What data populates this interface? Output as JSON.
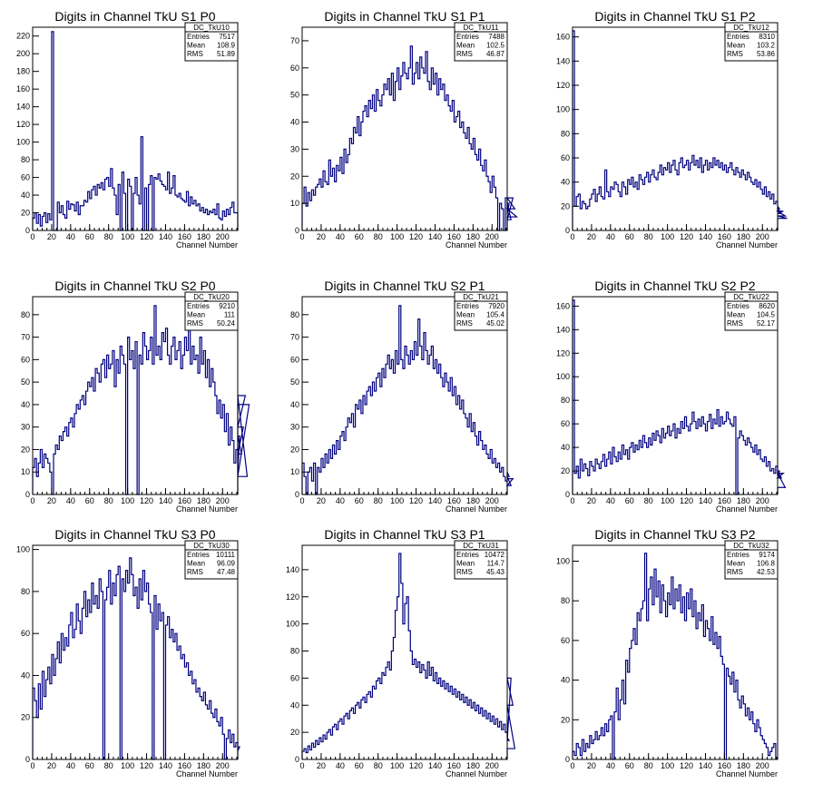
{
  "colors": {
    "histogram_line": "#000080",
    "frame": "#000000",
    "background": "#ffffff"
  },
  "chart_data": [
    {
      "type": "histogram",
      "title": "Digits in Channel TkU S1 P0",
      "xlabel": "Channel Number",
      "stats": {
        "name": "DC_TkU10",
        "entries": "7517",
        "mean": "108.9",
        "rms": "51.89"
      },
      "xlim": [
        0,
        216
      ],
      "ylim": [
        0,
        230
      ],
      "xticks": [
        "0",
        "20",
        "40",
        "60",
        "80",
        "100",
        "120",
        "140",
        "160",
        "180",
        "200"
      ],
      "yticks": [
        "0",
        "20",
        "40",
        "60",
        "80",
        "100",
        "120",
        "140",
        "160",
        "180",
        "200",
        "220"
      ],
      "bin_width": 2,
      "values": [
        14,
        20,
        8,
        18,
        5,
        16,
        20,
        9,
        19,
        12,
        225,
        0,
        0,
        32,
        20,
        28,
        18,
        14,
        33,
        24,
        30,
        29,
        22,
        32,
        18,
        28,
        28,
        34,
        32,
        44,
        36,
        46,
        50,
        40,
        52,
        48,
        54,
        46,
        58,
        60,
        50,
        70,
        48,
        40,
        18,
        52,
        0,
        66,
        42,
        0,
        58,
        50,
        0,
        42,
        60,
        40,
        30,
        106,
        0,
        48,
        0,
        52,
        62,
        0,
        60,
        58,
        64,
        56,
        52,
        50,
        46,
        66,
        42,
        48,
        62,
        40,
        38,
        42,
        36,
        34,
        32,
        44,
        28,
        38,
        30,
        34,
        28,
        30,
        22,
        26,
        20,
        24,
        18,
        22,
        20,
        24,
        18,
        30,
        14,
        12,
        22,
        16,
        24,
        18,
        26,
        32,
        20,
        20
      ]
    },
    {
      "type": "histogram",
      "title": "Digits in Channel TkU S1 P1",
      "xlabel": "Channel Number",
      "stats": {
        "name": "DC_TkU11",
        "entries": "7488",
        "mean": "102.5",
        "rms": "46.87"
      },
      "xlim": [
        0,
        216
      ],
      "ylim": [
        0,
        75
      ],
      "xticks": [
        "0",
        "20",
        "40",
        "60",
        "80",
        "100",
        "120",
        "140",
        "160",
        "180",
        "200"
      ],
      "yticks": [
        "0",
        "10",
        "20",
        "30",
        "40",
        "50",
        "60",
        "70"
      ],
      "bin_width": 2,
      "values": [
        10,
        16,
        9,
        14,
        11,
        15,
        13,
        16,
        17,
        19,
        16,
        22,
        18,
        17,
        26,
        20,
        23,
        18,
        24,
        22,
        27,
        21,
        30,
        25,
        28,
        34,
        32,
        38,
        36,
        42,
        35,
        40,
        44,
        46,
        42,
        48,
        45,
        50,
        44,
        52,
        48,
        46,
        50,
        54,
        52,
        56,
        50,
        58,
        48,
        55,
        60,
        52,
        57,
        62,
        58,
        56,
        60,
        68,
        54,
        58,
        62,
        56,
        64,
        60,
        58,
        66,
        55,
        52,
        60,
        54,
        58,
        50,
        56,
        52,
        54,
        48,
        50,
        46,
        44,
        48,
        40,
        42,
        44,
        38,
        40,
        36,
        34,
        38,
        32,
        30,
        34,
        28,
        26,
        30,
        24,
        22,
        26,
        20,
        18,
        14,
        20,
        16,
        12,
        0,
        10,
        8,
        0,
        12,
        6,
        10,
        4,
        12,
        8,
        5
      ]
    },
    {
      "type": "histogram",
      "title": "Digits in Channel TkU S1 P2",
      "xlabel": "Channel Number",
      "stats": {
        "name": "DC_TkU12",
        "entries": "8310",
        "mean": "103.2",
        "rms": "53.86"
      },
      "xlim": [
        0,
        216
      ],
      "ylim": [
        0,
        168
      ],
      "xticks": [
        "0",
        "20",
        "40",
        "60",
        "80",
        "100",
        "120",
        "140",
        "160",
        "180",
        "200"
      ],
      "yticks": [
        "0",
        "20",
        "40",
        "60",
        "80",
        "100",
        "120",
        "140",
        "160"
      ],
      "bin_width": 2,
      "values": [
        165,
        20,
        28,
        30,
        18,
        24,
        22,
        18,
        20,
        26,
        30,
        34,
        24,
        30,
        36,
        28,
        26,
        50,
        32,
        28,
        36,
        34,
        40,
        38,
        32,
        28,
        40,
        36,
        30,
        42,
        38,
        44,
        36,
        40,
        34,
        46,
        42,
        38,
        44,
        48,
        40,
        46,
        50,
        44,
        42,
        48,
        54,
        46,
        52,
        50,
        56,
        48,
        54,
        58,
        50,
        46,
        56,
        60,
        52,
        54,
        58,
        50,
        56,
        62,
        54,
        58,
        52,
        60,
        48,
        54,
        58,
        50,
        56,
        52,
        60,
        54,
        58,
        52,
        56,
        50,
        54,
        48,
        52,
        56,
        50,
        46,
        52,
        48,
        44,
        50,
        46,
        42,
        48,
        44,
        40,
        38,
        42,
        36,
        40,
        34,
        30,
        36,
        28,
        32,
        26,
        30,
        22,
        24,
        20,
        18,
        14,
        16,
        12,
        10
      ]
    },
    {
      "type": "histogram",
      "title": "Digits in Channel TkU S2 P0",
      "xlabel": "Channel Number",
      "stats": {
        "name": "DC_TkU20",
        "entries": "9210",
        "mean": "111",
        "rms": "50.24"
      },
      "xlim": [
        0,
        216
      ],
      "ylim": [
        0,
        88
      ],
      "xticks": [
        "0",
        "20",
        "40",
        "60",
        "80",
        "100",
        "120",
        "140",
        "160",
        "180",
        "200"
      ],
      "yticks": [
        "0",
        "10",
        "20",
        "30",
        "40",
        "50",
        "60",
        "70",
        "80"
      ],
      "bin_width": 2,
      "values": [
        12,
        16,
        8,
        14,
        20,
        12,
        18,
        16,
        14,
        10,
        0,
        18,
        22,
        20,
        26,
        24,
        28,
        30,
        26,
        32,
        34,
        30,
        36,
        40,
        38,
        42,
        44,
        40,
        46,
        50,
        48,
        52,
        46,
        56,
        54,
        50,
        58,
        60,
        52,
        62,
        56,
        58,
        64,
        48,
        60,
        54,
        66,
        62,
        58,
        0,
        70,
        60,
        64,
        56,
        68,
        0,
        62,
        58,
        72,
        66,
        60,
        64,
        70,
        58,
        84,
        62,
        66,
        60,
        72,
        68,
        74,
        62,
        58,
        66,
        70,
        60,
        64,
        68,
        56,
        62,
        70,
        64,
        82,
        58,
        66,
        60,
        62,
        54,
        70,
        58,
        64,
        52,
        60,
        48,
        56,
        50,
        44,
        36,
        42,
        34,
        40,
        28,
        36,
        22,
        30,
        24,
        14,
        20,
        10,
        26,
        18,
        30,
        44,
        8,
        40
      ]
    },
    {
      "type": "histogram",
      "title": "Digits in Channel TkU S2 P1",
      "xlabel": "Channel Number",
      "stats": {
        "name": "DC_TkU21",
        "entries": "7920",
        "mean": "105.4",
        "rms": "45.02"
      },
      "xlim": [
        0,
        216
      ],
      "ylim": [
        0,
        88
      ],
      "xticks": [
        "0",
        "20",
        "40",
        "60",
        "80",
        "100",
        "120",
        "140",
        "160",
        "180",
        "200"
      ],
      "yticks": [
        "0",
        "10",
        "20",
        "30",
        "40",
        "50",
        "60",
        "70",
        "80"
      ],
      "bin_width": 2,
      "values": [
        14,
        8,
        0,
        10,
        12,
        6,
        14,
        0,
        12,
        10,
        16,
        12,
        18,
        14,
        20,
        16,
        22,
        18,
        24,
        20,
        26,
        28,
        24,
        30,
        34,
        32,
        36,
        30,
        40,
        38,
        42,
        36,
        44,
        40,
        46,
        48,
        44,
        50,
        46,
        52,
        54,
        48,
        56,
        52,
        58,
        62,
        56,
        60,
        54,
        64,
        58,
        84,
        60,
        56,
        66,
        62,
        58,
        64,
        60,
        68,
        62,
        78,
        66,
        60,
        72,
        64,
        58,
        62,
        66,
        56,
        60,
        54,
        58,
        52,
        48,
        54,
        50,
        46,
        52,
        44,
        48,
        40,
        44,
        38,
        42,
        36,
        34,
        30,
        36,
        28,
        32,
        26,
        22,
        28,
        24,
        20,
        22,
        18,
        16,
        20,
        14,
        16,
        12,
        14,
        10,
        12,
        8,
        6,
        10,
        8,
        4,
        7
      ]
    },
    {
      "type": "histogram",
      "title": "Digits in Channel TkU S2 P2",
      "xlabel": "Channel Number",
      "stats": {
        "name": "DC_TkU22",
        "entries": "8620",
        "mean": "104.5",
        "rms": "52.17"
      },
      "xlim": [
        0,
        216
      ],
      "ylim": [
        0,
        168
      ],
      "xticks": [
        "0",
        "20",
        "40",
        "60",
        "80",
        "100",
        "120",
        "140",
        "160",
        "180",
        "200"
      ],
      "yticks": [
        "0",
        "20",
        "40",
        "60",
        "80",
        "100",
        "120",
        "140",
        "160"
      ],
      "bin_width": 2,
      "values": [
        165,
        18,
        24,
        14,
        30,
        20,
        26,
        22,
        16,
        28,
        24,
        20,
        30,
        26,
        22,
        28,
        34,
        24,
        30,
        36,
        26,
        40,
        32,
        28,
        36,
        30,
        42,
        34,
        38,
        30,
        40,
        44,
        36,
        42,
        38,
        46,
        40,
        50,
        44,
        40,
        48,
        42,
        52,
        46,
        54,
        50,
        44,
        56,
        48,
        52,
        58,
        50,
        54,
        60,
        48,
        56,
        52,
        62,
        56,
        66,
        58,
        54,
        60,
        70,
        62,
        56,
        64,
        58,
        66,
        60,
        54,
        62,
        68,
        56,
        64,
        60,
        72,
        58,
        66,
        60,
        62,
        70,
        64,
        60,
        58,
        66,
        0,
        48,
        54,
        50,
        46,
        42,
        48,
        44,
        40,
        36,
        42,
        34,
        38,
        30,
        28,
        32,
        24,
        28,
        20,
        22,
        18,
        24,
        16,
        20,
        14,
        18,
        6
      ]
    },
    {
      "type": "histogram",
      "title": "Digits in Channel TkU S3 P0",
      "xlabel": "Channel Number",
      "stats": {
        "name": "DC_TkU30",
        "entries": "10111",
        "mean": "96.09",
        "rms": "47.48"
      },
      "xlim": [
        0,
        216
      ],
      "ylim": [
        0,
        102
      ],
      "xticks": [
        "0",
        "20",
        "40",
        "60",
        "80",
        "100",
        "120",
        "140",
        "160",
        "180",
        "200"
      ],
      "yticks": [
        "0",
        "20",
        "40",
        "60",
        "80",
        "100"
      ],
      "bin_width": 2,
      "values": [
        34,
        28,
        20,
        36,
        24,
        42,
        30,
        38,
        44,
        36,
        50,
        40,
        48,
        56,
        46,
        60,
        52,
        58,
        54,
        64,
        70,
        58,
        62,
        74,
        66,
        60,
        72,
        80,
        68,
        76,
        70,
        84,
        74,
        78,
        72,
        86,
        80,
        0,
        76,
        82,
        90,
        74,
        84,
        78,
        88,
        92,
        0,
        86,
        80,
        90,
        84,
        96,
        88,
        78,
        82,
        72,
        86,
        76,
        90,
        80,
        84,
        74,
        70,
        0,
        78,
        62,
        74,
        66,
        70,
        0,
        64,
        68,
        58,
        62,
        56,
        60,
        52,
        54,
        48,
        50,
        44,
        46,
        40,
        42,
        36,
        38,
        32,
        34,
        30,
        28,
        32,
        26,
        24,
        28,
        22,
        20,
        24,
        18,
        16,
        20,
        12,
        0,
        10,
        14,
        8,
        12,
        6,
        8,
        4,
        6
      ]
    },
    {
      "type": "histogram",
      "title": "Digits in Channel TkU S3 P1",
      "xlabel": "Channel Number",
      "stats": {
        "name": "DC_TkU31",
        "entries": "10472",
        "mean": "114.7",
        "rms": "45.43"
      },
      "xlim": [
        0,
        216
      ],
      "ylim": [
        0,
        158
      ],
      "xticks": [
        "0",
        "20",
        "40",
        "60",
        "80",
        "100",
        "120",
        "140",
        "160",
        "180",
        "200"
      ],
      "yticks": [
        "0",
        "20",
        "40",
        "60",
        "80",
        "100",
        "120",
        "140"
      ],
      "bin_width": 2,
      "values": [
        6,
        8,
        5,
        10,
        7,
        12,
        9,
        14,
        11,
        16,
        13,
        18,
        15,
        20,
        22,
        18,
        24,
        26,
        22,
        28,
        30,
        26,
        32,
        34,
        30,
        36,
        38,
        34,
        40,
        42,
        38,
        44,
        46,
        42,
        48,
        50,
        46,
        54,
        52,
        58,
        60,
        56,
        64,
        62,
        68,
        72,
        66,
        80,
        90,
        110,
        120,
        152,
        130,
        100,
        115,
        120,
        95,
        80,
        70,
        74,
        68,
        72,
        64,
        70,
        66,
        60,
        72,
        62,
        68,
        58,
        64,
        56,
        60,
        54,
        58,
        52,
        56,
        50,
        54,
        48,
        52,
        46,
        50,
        44,
        48,
        42,
        46,
        40,
        44,
        38,
        42,
        36,
        40,
        34,
        38,
        32,
        36,
        30,
        34,
        28,
        32,
        26,
        30,
        24,
        28,
        22,
        26,
        20,
        16,
        14,
        60,
        40,
        8
      ]
    },
    {
      "type": "histogram",
      "title": "Digits in Channel TkU S3 P2",
      "xlabel": "Channel Number",
      "stats": {
        "name": "DC_TkU32",
        "entries": "9174",
        "mean": "106.8",
        "rms": "42.53"
      },
      "xlim": [
        0,
        216
      ],
      "ylim": [
        0,
        108
      ],
      "xticks": [
        "0",
        "20",
        "40",
        "60",
        "80",
        "100",
        "120",
        "140",
        "160",
        "180",
        "200"
      ],
      "yticks": [
        "0",
        "20",
        "40",
        "60",
        "80",
        "100"
      ],
      "bin_width": 2,
      "values": [
        4,
        2,
        8,
        6,
        2,
        10,
        4,
        8,
        6,
        12,
        8,
        10,
        14,
        10,
        12,
        16,
        12,
        18,
        14,
        20,
        22,
        0,
        24,
        36,
        20,
        30,
        40,
        28,
        50,
        44,
        56,
        60,
        66,
        58,
        74,
        70,
        76,
        80,
        104,
        70,
        86,
        92,
        78,
        96,
        82,
        90,
        74,
        88,
        80,
        72,
        84,
        78,
        92,
        76,
        86,
        80,
        88,
        74,
        82,
        70,
        84,
        76,
        86,
        72,
        80,
        66,
        74,
        70,
        78,
        62,
        70,
        66,
        60,
        72,
        58,
        64,
        56,
        62,
        52,
        48,
        0,
        46,
        42,
        38,
        44,
        34,
        40,
        30,
        26,
        32,
        28,
        22,
        26,
        20,
        24,
        18,
        14,
        20,
        16,
        12,
        10,
        8,
        6,
        2,
        4,
        6,
        8
      ]
    }
  ]
}
